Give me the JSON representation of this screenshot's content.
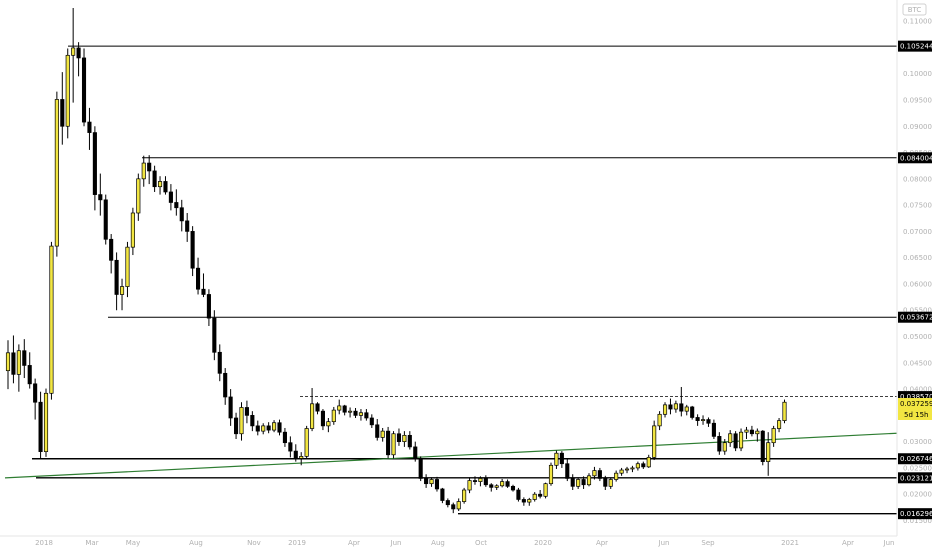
{
  "quote_currency": "BTC",
  "chart_data": {
    "type": "candlestick",
    "title": "",
    "ylim": [
      0.013,
      0.1125
    ],
    "y_ticks": [
      {
        "value": 0.11,
        "label": "0.110000"
      },
      {
        "value": 0.105,
        "label": "0.105000"
      },
      {
        "value": 0.1,
        "label": "0.100000"
      },
      {
        "value": 0.095,
        "label": "0.095000"
      },
      {
        "value": 0.09,
        "label": "0.090000"
      },
      {
        "value": 0.085,
        "label": "0.085000"
      },
      {
        "value": 0.08,
        "label": "0.080000"
      },
      {
        "value": 0.075,
        "label": "0.075000"
      },
      {
        "value": 0.07,
        "label": "0.070000"
      },
      {
        "value": 0.065,
        "label": "0.065000"
      },
      {
        "value": 0.06,
        "label": "0.060000"
      },
      {
        "value": 0.055,
        "label": "0.055000"
      },
      {
        "value": 0.05,
        "label": "0.050000"
      },
      {
        "value": 0.045,
        "label": "0.045000"
      },
      {
        "value": 0.04,
        "label": "0.040000"
      },
      {
        "value": 0.035,
        "label": "0.035000"
      },
      {
        "value": 0.03,
        "label": "0.030000"
      },
      {
        "value": 0.025,
        "label": "0.025000"
      },
      {
        "value": 0.02,
        "label": "0.020000"
      },
      {
        "value": 0.015,
        "label": "0.015000"
      }
    ],
    "x_ticks": [
      "2018",
      "Mar",
      "May",
      "Aug",
      "Nov",
      "2019",
      "Apr",
      "Jun",
      "Aug",
      "Oct",
      "2020",
      "Apr",
      "Jun",
      "Sep",
      "2021",
      "Apr",
      "Jun"
    ],
    "levels": [
      {
        "value": 0.105244,
        "label": "0.105244",
        "style": "solid"
      },
      {
        "value": 0.084004,
        "label": "0.084004",
        "style": "solid"
      },
      {
        "value": 0.053672,
        "label": "0.053672",
        "style": "solid"
      },
      {
        "value": 0.03857,
        "label": "0.038570",
        "style": "dashed"
      },
      {
        "value": 0.026746,
        "label": "0.026746",
        "style": "solid"
      },
      {
        "value": 0.023121,
        "label": "0.023121",
        "style": "solid"
      },
      {
        "value": 0.016296,
        "label": "0.016296",
        "style": "solid"
      }
    ],
    "trendline": {
      "color": "#2e7d32",
      "from": [
        0,
        0.0231
      ],
      "to": [
        1,
        0.0316
      ]
    },
    "last_price": {
      "value": 0.037259,
      "label": "0.037259",
      "countdown": "5d 15h"
    },
    "bull_color": "#f2e642",
    "bear_color": "#000000",
    "candles": [
      [
        0.0435,
        0.0493,
        0.04,
        0.0469
      ],
      [
        0.0469,
        0.0502,
        0.0411,
        0.0428
      ],
      [
        0.0428,
        0.0485,
        0.0395,
        0.0473
      ],
      [
        0.0473,
        0.0495,
        0.0421,
        0.0445
      ],
      [
        0.0445,
        0.047,
        0.0401,
        0.041
      ],
      [
        0.041,
        0.042,
        0.0342,
        0.0375
      ],
      [
        0.0375,
        0.0395,
        0.0268,
        0.0281
      ],
      [
        0.0281,
        0.0401,
        0.0271,
        0.0392
      ],
      [
        0.0392,
        0.068,
        0.038,
        0.0672
      ],
      [
        0.0672,
        0.0966,
        0.0652,
        0.0951
      ],
      [
        0.0951,
        0.1003,
        0.0865,
        0.09
      ],
      [
        0.09,
        0.1048,
        0.0877,
        0.1035
      ],
      [
        0.1035,
        0.1125,
        0.0945,
        0.1049
      ],
      [
        0.1049,
        0.106,
        0.0995,
        0.103
      ],
      [
        0.103,
        0.1048,
        0.09,
        0.0908
      ],
      [
        0.0908,
        0.0935,
        0.0855,
        0.0888
      ],
      [
        0.0888,
        0.09,
        0.074,
        0.077
      ],
      [
        0.077,
        0.081,
        0.073,
        0.076
      ],
      [
        0.076,
        0.077,
        0.0675,
        0.0685
      ],
      [
        0.0685,
        0.0695,
        0.062,
        0.0645
      ],
      [
        0.0645,
        0.066,
        0.055,
        0.058
      ],
      [
        0.058,
        0.061,
        0.055,
        0.0595
      ],
      [
        0.0595,
        0.068,
        0.0575,
        0.067
      ],
      [
        0.067,
        0.0745,
        0.0655,
        0.0735
      ],
      [
        0.0735,
        0.081,
        0.072,
        0.08
      ],
      [
        0.08,
        0.0844,
        0.0785,
        0.083
      ],
      [
        0.083,
        0.0845,
        0.079,
        0.0815
      ],
      [
        0.0815,
        0.0825,
        0.0775,
        0.0785
      ],
      [
        0.0785,
        0.0805,
        0.077,
        0.0795
      ],
      [
        0.0795,
        0.0805,
        0.077,
        0.0775
      ],
      [
        0.0775,
        0.079,
        0.074,
        0.0755
      ],
      [
        0.0755,
        0.078,
        0.073,
        0.0745
      ],
      [
        0.0745,
        0.076,
        0.07,
        0.072
      ],
      [
        0.072,
        0.0735,
        0.068,
        0.07
      ],
      [
        0.07,
        0.071,
        0.0615,
        0.063
      ],
      [
        0.063,
        0.065,
        0.058,
        0.059
      ],
      [
        0.059,
        0.062,
        0.0575,
        0.058
      ],
      [
        0.058,
        0.059,
        0.052,
        0.0535
      ],
      [
        0.0535,
        0.055,
        0.0455,
        0.047
      ],
      [
        0.047,
        0.0485,
        0.0415,
        0.043
      ],
      [
        0.043,
        0.044,
        0.037,
        0.0385
      ],
      [
        0.0385,
        0.04,
        0.033,
        0.0345
      ],
      [
        0.0345,
        0.0355,
        0.0305,
        0.0315
      ],
      [
        0.0315,
        0.0375,
        0.0302,
        0.0365
      ],
      [
        0.0365,
        0.0378,
        0.0335,
        0.035
      ],
      [
        0.035,
        0.0358,
        0.032,
        0.033
      ],
      [
        0.033,
        0.034,
        0.0312,
        0.032
      ],
      [
        0.032,
        0.0335,
        0.0314,
        0.033
      ],
      [
        0.033,
        0.0337,
        0.0316,
        0.0322
      ],
      [
        0.0322,
        0.0341,
        0.0318,
        0.0336
      ],
      [
        0.0336,
        0.0342,
        0.0312,
        0.0318
      ],
      [
        0.0318,
        0.0326,
        0.029,
        0.0298
      ],
      [
        0.0298,
        0.031,
        0.027,
        0.0282
      ],
      [
        0.0282,
        0.0295,
        0.0262,
        0.0268
      ],
      [
        0.0268,
        0.028,
        0.0255,
        0.0272
      ],
      [
        0.0272,
        0.033,
        0.0268,
        0.0325
      ],
      [
        0.0325,
        0.0402,
        0.032,
        0.0372
      ],
      [
        0.0372,
        0.0375,
        0.0352,
        0.0358
      ],
      [
        0.0358,
        0.0362,
        0.0322,
        0.033
      ],
      [
        0.033,
        0.0345,
        0.0318,
        0.0338
      ],
      [
        0.0338,
        0.0366,
        0.0332,
        0.036
      ],
      [
        0.036,
        0.038,
        0.0352,
        0.0368
      ],
      [
        0.0368,
        0.037,
        0.035,
        0.0356
      ],
      [
        0.0356,
        0.0365,
        0.0346,
        0.0358
      ],
      [
        0.0358,
        0.0364,
        0.0345,
        0.035
      ],
      [
        0.035,
        0.0362,
        0.034,
        0.0355
      ],
      [
        0.0355,
        0.0362,
        0.034,
        0.0345
      ],
      [
        0.0345,
        0.0352,
        0.0326,
        0.0332
      ],
      [
        0.0332,
        0.0343,
        0.0302,
        0.0308
      ],
      [
        0.0308,
        0.0326,
        0.03,
        0.032
      ],
      [
        0.032,
        0.0328,
        0.0268,
        0.0275
      ],
      [
        0.0275,
        0.032,
        0.0268,
        0.0315
      ],
      [
        0.0315,
        0.0325,
        0.0292,
        0.03
      ],
      [
        0.03,
        0.032,
        0.029,
        0.0312
      ],
      [
        0.0312,
        0.032,
        0.0285,
        0.029
      ],
      [
        0.029,
        0.03,
        0.0262,
        0.0268
      ],
      [
        0.0268,
        0.0272,
        0.0225,
        0.023
      ],
      [
        0.023,
        0.0238,
        0.0212,
        0.022
      ],
      [
        0.022,
        0.0232,
        0.0214,
        0.0228
      ],
      [
        0.0228,
        0.0233,
        0.0205,
        0.021
      ],
      [
        0.021,
        0.0212,
        0.0183,
        0.0188
      ],
      [
        0.0188,
        0.0192,
        0.0175,
        0.018
      ],
      [
        0.018,
        0.0184,
        0.0164,
        0.0172
      ],
      [
        0.0172,
        0.0192,
        0.0168,
        0.0186
      ],
      [
        0.0186,
        0.0212,
        0.0182,
        0.0208
      ],
      [
        0.0208,
        0.0232,
        0.0202,
        0.0226
      ],
      [
        0.0226,
        0.0234,
        0.0218,
        0.0224
      ],
      [
        0.0224,
        0.0234,
        0.0215,
        0.023
      ],
      [
        0.023,
        0.0236,
        0.0214,
        0.0218
      ],
      [
        0.0218,
        0.0221,
        0.0205,
        0.0213
      ],
      [
        0.0213,
        0.0219,
        0.0208,
        0.0216
      ],
      [
        0.0216,
        0.0229,
        0.0213,
        0.0224
      ],
      [
        0.0224,
        0.0228,
        0.0212,
        0.0215
      ],
      [
        0.0215,
        0.0218,
        0.0205,
        0.0208
      ],
      [
        0.0208,
        0.0212,
        0.0186,
        0.019
      ],
      [
        0.019,
        0.0194,
        0.0178,
        0.0185
      ],
      [
        0.0185,
        0.0193,
        0.0178,
        0.019
      ],
      [
        0.019,
        0.0204,
        0.0186,
        0.02
      ],
      [
        0.02,
        0.0208,
        0.0192,
        0.0196
      ],
      [
        0.0196,
        0.0222,
        0.0192,
        0.022
      ],
      [
        0.022,
        0.026,
        0.0216,
        0.0255
      ],
      [
        0.0255,
        0.0283,
        0.0248,
        0.0278
      ],
      [
        0.0278,
        0.0282,
        0.025,
        0.0258
      ],
      [
        0.0258,
        0.0268,
        0.0225,
        0.023
      ],
      [
        0.023,
        0.0238,
        0.0208,
        0.0215
      ],
      [
        0.0215,
        0.0232,
        0.021,
        0.0228
      ],
      [
        0.0228,
        0.0234,
        0.021,
        0.0218
      ],
      [
        0.0218,
        0.024,
        0.0215,
        0.0235
      ],
      [
        0.0235,
        0.0252,
        0.0228,
        0.0245
      ],
      [
        0.0245,
        0.025,
        0.0225,
        0.023
      ],
      [
        0.023,
        0.0235,
        0.0208,
        0.0215
      ],
      [
        0.0215,
        0.0232,
        0.021,
        0.0228
      ],
      [
        0.0228,
        0.0245,
        0.0224,
        0.024
      ],
      [
        0.024,
        0.025,
        0.0235,
        0.0246
      ],
      [
        0.0246,
        0.0252,
        0.024,
        0.0248
      ],
      [
        0.0248,
        0.0254,
        0.0242,
        0.025
      ],
      [
        0.025,
        0.0262,
        0.0245,
        0.0258
      ],
      [
        0.0258,
        0.0262,
        0.0248,
        0.0252
      ],
      [
        0.0252,
        0.0275,
        0.025,
        0.027
      ],
      [
        0.027,
        0.034,
        0.0265,
        0.033
      ],
      [
        0.033,
        0.0358,
        0.0322,
        0.0352
      ],
      [
        0.0352,
        0.0375,
        0.0346,
        0.037
      ],
      [
        0.037,
        0.0382,
        0.0352,
        0.0362
      ],
      [
        0.0362,
        0.0378,
        0.0355,
        0.0372
      ],
      [
        0.0372,
        0.0404,
        0.0348,
        0.0358
      ],
      [
        0.0358,
        0.037,
        0.035,
        0.0366
      ],
      [
        0.0366,
        0.0368,
        0.0342,
        0.0346
      ],
      [
        0.0346,
        0.0352,
        0.033,
        0.034
      ],
      [
        0.034,
        0.035,
        0.0332,
        0.0342
      ],
      [
        0.0342,
        0.0346,
        0.0328,
        0.0335
      ],
      [
        0.0335,
        0.0342,
        0.0305,
        0.031
      ],
      [
        0.031,
        0.0318,
        0.0275,
        0.0282
      ],
      [
        0.0282,
        0.0305,
        0.0275,
        0.0298
      ],
      [
        0.0298,
        0.0322,
        0.029,
        0.0315
      ],
      [
        0.0315,
        0.032,
        0.0282,
        0.0288
      ],
      [
        0.0288,
        0.0325,
        0.0282,
        0.0318
      ],
      [
        0.0318,
        0.0328,
        0.0305,
        0.0322
      ],
      [
        0.0322,
        0.033,
        0.031,
        0.0315
      ],
      [
        0.0315,
        0.0325,
        0.03,
        0.032
      ],
      [
        0.032,
        0.0322,
        0.0255,
        0.0262
      ],
      [
        0.0262,
        0.0318,
        0.0235,
        0.0298
      ],
      [
        0.0298,
        0.033,
        0.029,
        0.0325
      ],
      [
        0.0325,
        0.0345,
        0.0318,
        0.034
      ],
      [
        0.034,
        0.038,
        0.0335,
        0.0375
      ]
    ]
  }
}
